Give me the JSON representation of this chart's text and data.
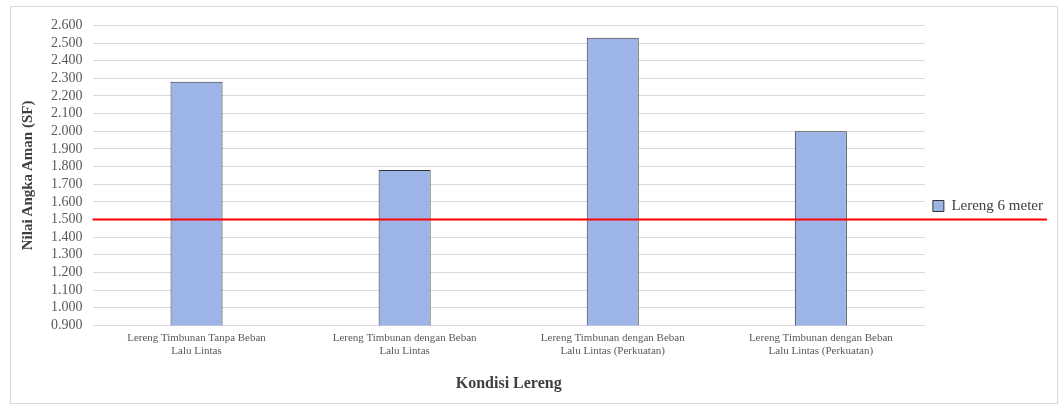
{
  "chart_data": {
    "type": "bar",
    "xlabel": "Kondisi Lereng",
    "ylabel": "Nilai Angka Aman (SF)",
    "categories": [
      "Lereng Timbunan Tanpa Beban Lalu Lintas",
      "Lereng Timbunan dengan Beban Lalu Lintas",
      "Lereng Timbunan dengan Beban Lalu Lintas (Perkuatan)",
      "Lereng Timbunan dengan Beban Lalu Lintas (Perkuatan)"
    ],
    "series": [
      {
        "name": "Lereng 6 meter",
        "color": "#9db5e6",
        "values": [
          2.28,
          1.78,
          2.53,
          2.0
        ]
      }
    ],
    "ylim": [
      0.9,
      2.6
    ],
    "yticks": [
      {
        "value": 0.9,
        "label": "0.900"
      },
      {
        "value": 1.0,
        "label": "1.000"
      },
      {
        "value": 1.1,
        "label": "1.100"
      },
      {
        "value": 1.2,
        "label": "1.200"
      },
      {
        "value": 1.3,
        "label": "1.300"
      },
      {
        "value": 1.4,
        "label": "1.400"
      },
      {
        "value": 1.5,
        "label": "1.500"
      },
      {
        "value": 1.6,
        "label": "1.600"
      },
      {
        "value": 1.7,
        "label": "1.700"
      },
      {
        "value": 1.8,
        "label": "1.800"
      },
      {
        "value": 1.9,
        "label": "1.900"
      },
      {
        "value": 2.0,
        "label": "2.000"
      },
      {
        "value": 2.1,
        "label": "2.100"
      },
      {
        "value": 2.2,
        "label": "2.200"
      },
      {
        "value": 2.3,
        "label": "2.300"
      },
      {
        "value": 2.4,
        "label": "2.400"
      },
      {
        "value": 2.5,
        "label": "2.500"
      },
      {
        "value": 2.6,
        "label": "2.600"
      }
    ],
    "ref_lines": [
      {
        "axis": "y",
        "value": 1.5,
        "color": "#ff0000"
      }
    ],
    "grid": "y",
    "legend": "right"
  }
}
